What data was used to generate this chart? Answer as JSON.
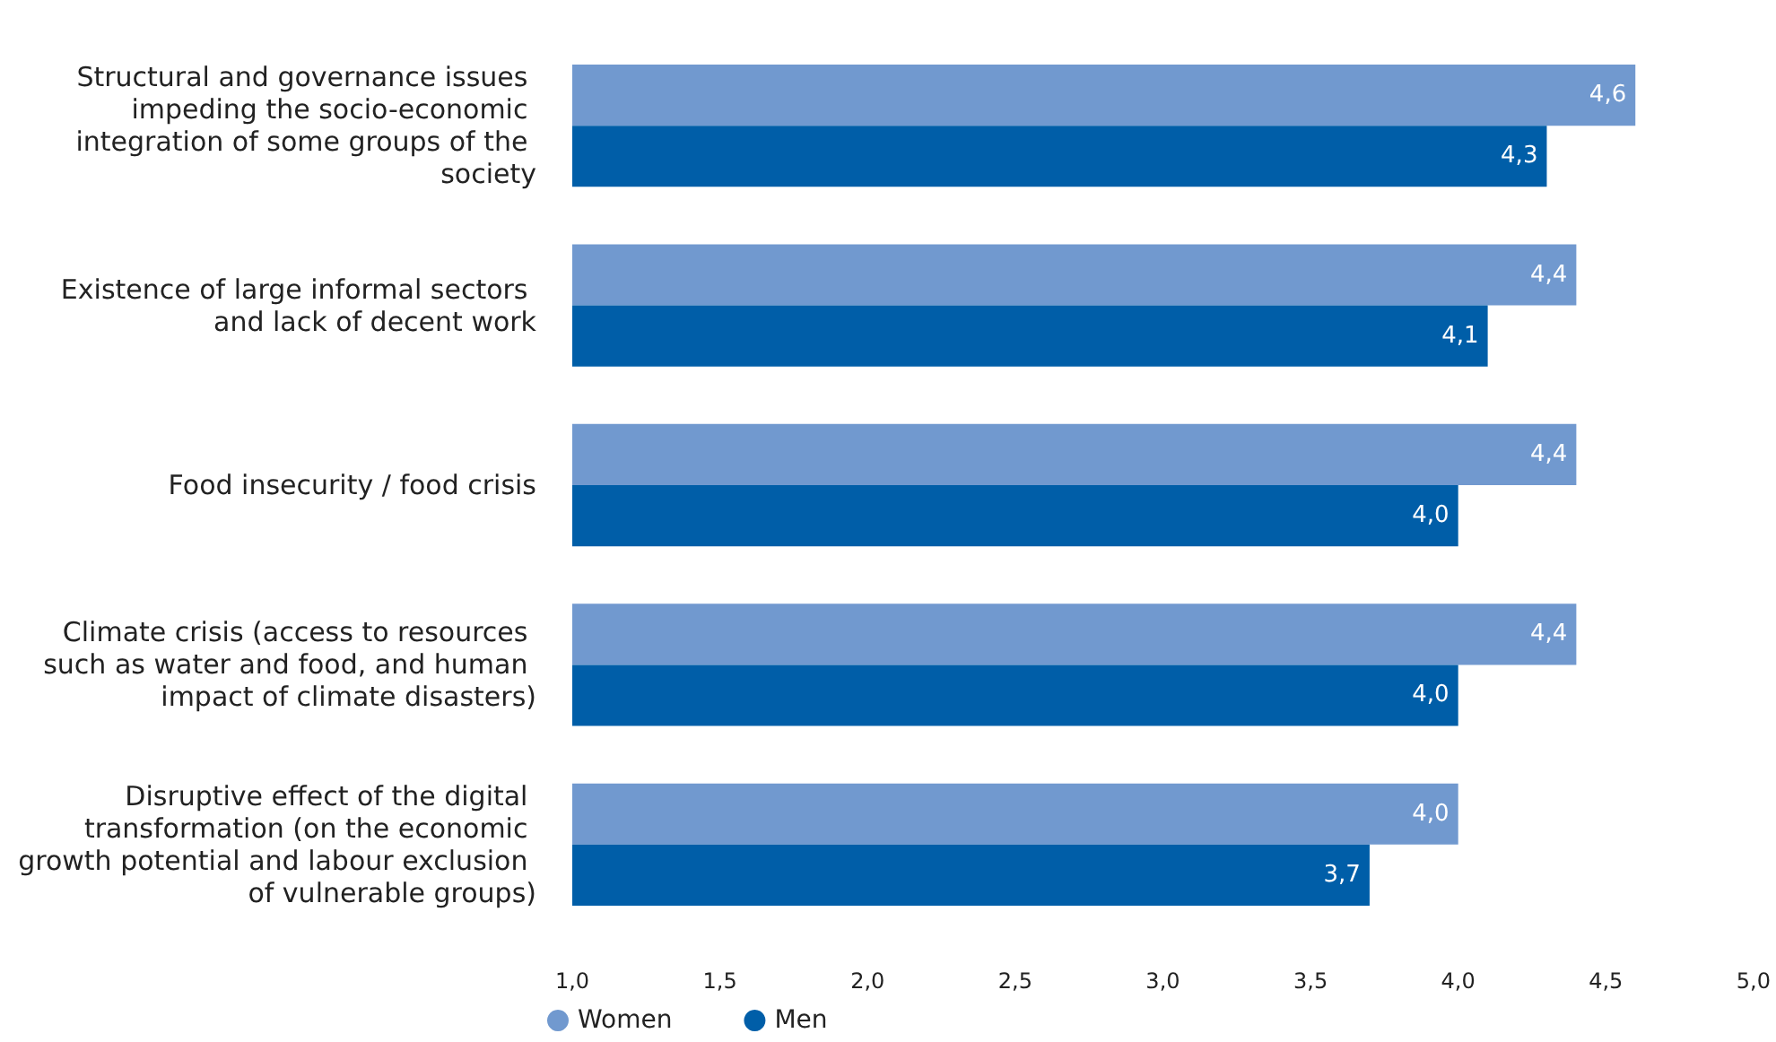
{
  "chart_data": {
    "type": "bar",
    "orientation": "horizontal",
    "categories": [
      "Structural and governance issues impeding the socio-economic integration of some groups of the society",
      "Existence of large informal sectors and lack of decent work",
      "Food insecurity / food crisis",
      "Climate crisis (access to resources such as water and food, and human impact of climate disasters)",
      "Disruptive effect of the digital transformation (on the economic growth potential and labour exclusion of vulnerable groups)"
    ],
    "series": [
      {
        "name": "Women",
        "color": "#7199cf",
        "values": [
          4.6,
          4.4,
          4.4,
          4.4,
          4.0
        ],
        "value_labels": [
          "4,6",
          "4,4",
          "4,4",
          "4,4",
          "4,0"
        ]
      },
      {
        "name": "Men",
        "color": "#005ea8",
        "values": [
          4.3,
          4.1,
          4.0,
          4.0,
          3.7
        ],
        "value_labels": [
          "4,3",
          "4,1",
          "4,0",
          "4,0",
          "3,7"
        ]
      }
    ],
    "xlim": [
      1,
      5
    ],
    "xticks": [
      {
        "value": 1,
        "label": "1,0"
      },
      {
        "value": 1.5,
        "label": "1,5"
      },
      {
        "value": 2,
        "label": "2,0"
      },
      {
        "value": 2.5,
        "label": "2,5"
      },
      {
        "value": 3,
        "label": "3,0"
      },
      {
        "value": 3.5,
        "label": "3,5"
      },
      {
        "value": 4,
        "label": "4,0"
      },
      {
        "value": 4.5,
        "label": "4,5"
      },
      {
        "value": 5,
        "label": "5,0"
      }
    ],
    "grid": false,
    "legend": "bottom"
  }
}
